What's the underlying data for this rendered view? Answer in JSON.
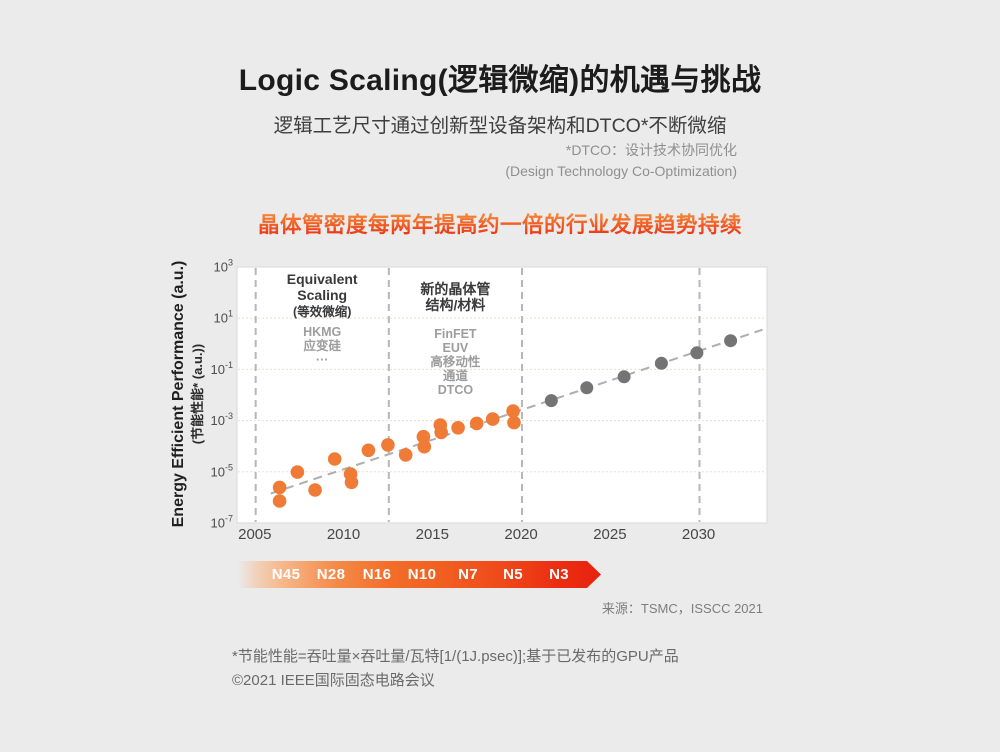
{
  "page": {
    "title": "Logic Scaling(逻辑微缩)的机遇与挑战",
    "subtitle": "逻辑工艺尺寸通过创新型设备架构和DTCO*不断微缩",
    "dtco_note_line1": "*DTCO：设计技术协同优化",
    "dtco_note_line2": "(Design Technology Co-Optimization)",
    "highlight": "晶体管密度每两年提高约一倍的行业发展趋势持续",
    "source": "来源：TSMC，ISSCC 2021",
    "footnote1": "*节能性能=吞吐量×吞吐量/瓦特[1/(1J.psec)];基于已发布的GPU产品",
    "footnote2": "©2021 IEEE国际固态电路会议"
  },
  "colors": {
    "background": "#ebebeb",
    "plot_background": "#ffffff",
    "plot_border": "#d9d9d9",
    "orange_series": "#ef7b36",
    "gray_series": "#747474",
    "trend_line": "#aeaeae",
    "era_divider": "#b7b7b7",
    "gridline": "#f6dccb",
    "tick_text": "#4d4d4d",
    "annotation_title": "#3a3a3a",
    "annotation_detail": "#9d9d9d",
    "highlight_gradient_top": "#f6953f",
    "highlight_gradient_bottom": "#ee3311",
    "arrow_gradient_start": "#f7b88c",
    "arrow_gradient_end": "#e8220f"
  },
  "node_arrow": {
    "labels": [
      "N45",
      "N28",
      "N16",
      "N10",
      "N7",
      "N5",
      "N3"
    ]
  },
  "chart_data": {
    "type": "scatter",
    "ylabel": "Energy Efficient Performance (a.u.)",
    "ylabel_zh": "(节能性能* (a.u.))",
    "xlabel": "",
    "y_scale": "log10",
    "x_range": [
      2004,
      2033.85
    ],
    "y_exp_range": [
      -7,
      3
    ],
    "x_ticks": [
      2005,
      2010,
      2015,
      2020,
      2025,
      2030
    ],
    "y_tick_exponents": [
      3,
      1,
      -1,
      -3,
      -5,
      -7
    ],
    "grid_exponents": [
      1,
      -1,
      -3,
      -5
    ],
    "grid_style": "dotted horizontal",
    "legend": "none",
    "era_divider_years": [
      2005.05,
      2012.55,
      2020.05,
      2030.05
    ],
    "series": [
      {
        "name": "published-gpu-products",
        "color": "#ef7b36",
        "points_year_log10value": [
          [
            2006.4,
            -5.61
          ],
          [
            2006.4,
            -6.14
          ],
          [
            2007.4,
            -5.01
          ],
          [
            2008.4,
            -5.71
          ],
          [
            2009.5,
            -4.5
          ],
          [
            2010.4,
            -5.09
          ],
          [
            2010.45,
            -5.41
          ],
          [
            2011.4,
            -4.16
          ],
          [
            2012.5,
            -3.95
          ],
          [
            2013.5,
            -4.34
          ],
          [
            2014.5,
            -3.63
          ],
          [
            2014.55,
            -4.02
          ],
          [
            2015.45,
            -3.17
          ],
          [
            2015.5,
            -3.46
          ],
          [
            2016.45,
            -3.28
          ],
          [
            2017.5,
            -3.11
          ],
          [
            2018.4,
            -2.94
          ],
          [
            2019.55,
            -2.63
          ],
          [
            2019.6,
            -3.08
          ]
        ]
      },
      {
        "name": "future-projection",
        "color": "#747474",
        "points_year_log10value": [
          [
            2021.7,
            -2.22
          ],
          [
            2023.7,
            -1.72
          ],
          [
            2025.8,
            -1.29
          ],
          [
            2027.9,
            -0.76
          ],
          [
            2029.9,
            -0.35
          ],
          [
            2031.8,
            0.12
          ]
        ]
      }
    ],
    "trend_line": {
      "from": [
        2005.9,
        -5.85
      ],
      "to": [
        2033.6,
        0.55
      ],
      "color": "#aeaeae",
      "style": "dashed"
    },
    "region_labels": [
      {
        "center_year": 2008.8,
        "title_lines": [
          "Equivalent",
          "Scaling",
          "(等效微缩)"
        ],
        "detail_lines": [
          "HKMG",
          "应变硅",
          "···"
        ]
      },
      {
        "center_year": 2016.3,
        "title_lines": [
          "新的晶体管",
          "结构/材料"
        ],
        "detail_lines": [
          "FinFET",
          "EUV",
          "高移动性",
          "通道",
          "DTCO"
        ]
      }
    ]
  }
}
